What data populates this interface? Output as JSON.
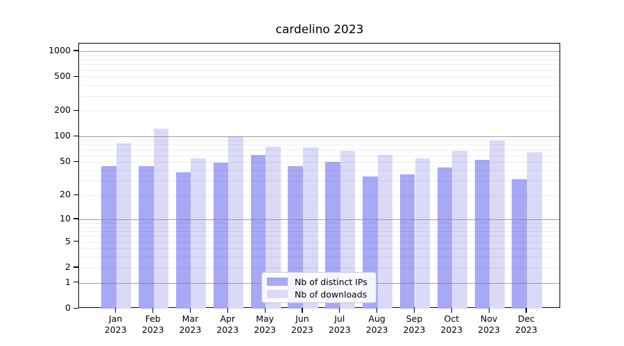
{
  "chart_data": {
    "type": "bar",
    "title": "cardelino 2023",
    "categories": [
      "Jan",
      "Feb",
      "Mar",
      "Apr",
      "May",
      "Jun",
      "Jul",
      "Aug",
      "Sep",
      "Oct",
      "Nov",
      "Dec"
    ],
    "category_year": "2023",
    "series": [
      {
        "name": "Nb of distinct IPs",
        "color": "#a8a8f6",
        "values": [
          45,
          45,
          38,
          49,
          61,
          45,
          50,
          34,
          36,
          43,
          53,
          31
        ]
      },
      {
        "name": "Nb of downloads",
        "color": "#dadaf8",
        "values": [
          83,
          125,
          55,
          101,
          76,
          74,
          68,
          61,
          55,
          68,
          90,
          65
        ]
      }
    ],
    "y_scale": "log10(1+v)",
    "y_tick_labels": [
      0,
      1,
      2,
      5,
      10,
      20,
      50,
      100,
      200,
      500,
      1000
    ],
    "y_major_gridlines": [
      1,
      10,
      100,
      1000
    ],
    "y_minor_gridlines": [
      2,
      3,
      4,
      5,
      6,
      7,
      8,
      9,
      20,
      30,
      40,
      50,
      60,
      70,
      80,
      90,
      200,
      300,
      400,
      500,
      600,
      700,
      800,
      900
    ],
    "ylim": [
      0,
      1250
    ],
    "xlabel": "",
    "ylabel": "",
    "grid": true,
    "legend_position": "lower-center"
  },
  "colors": {
    "background": "#ffffff",
    "axis": "#000000",
    "major_grid": "#7d7d7d",
    "minor_grid": "#e9e9e9",
    "distinct_ips_bar": "#a8a8f6",
    "downloads_bar": "#dadaf8"
  }
}
